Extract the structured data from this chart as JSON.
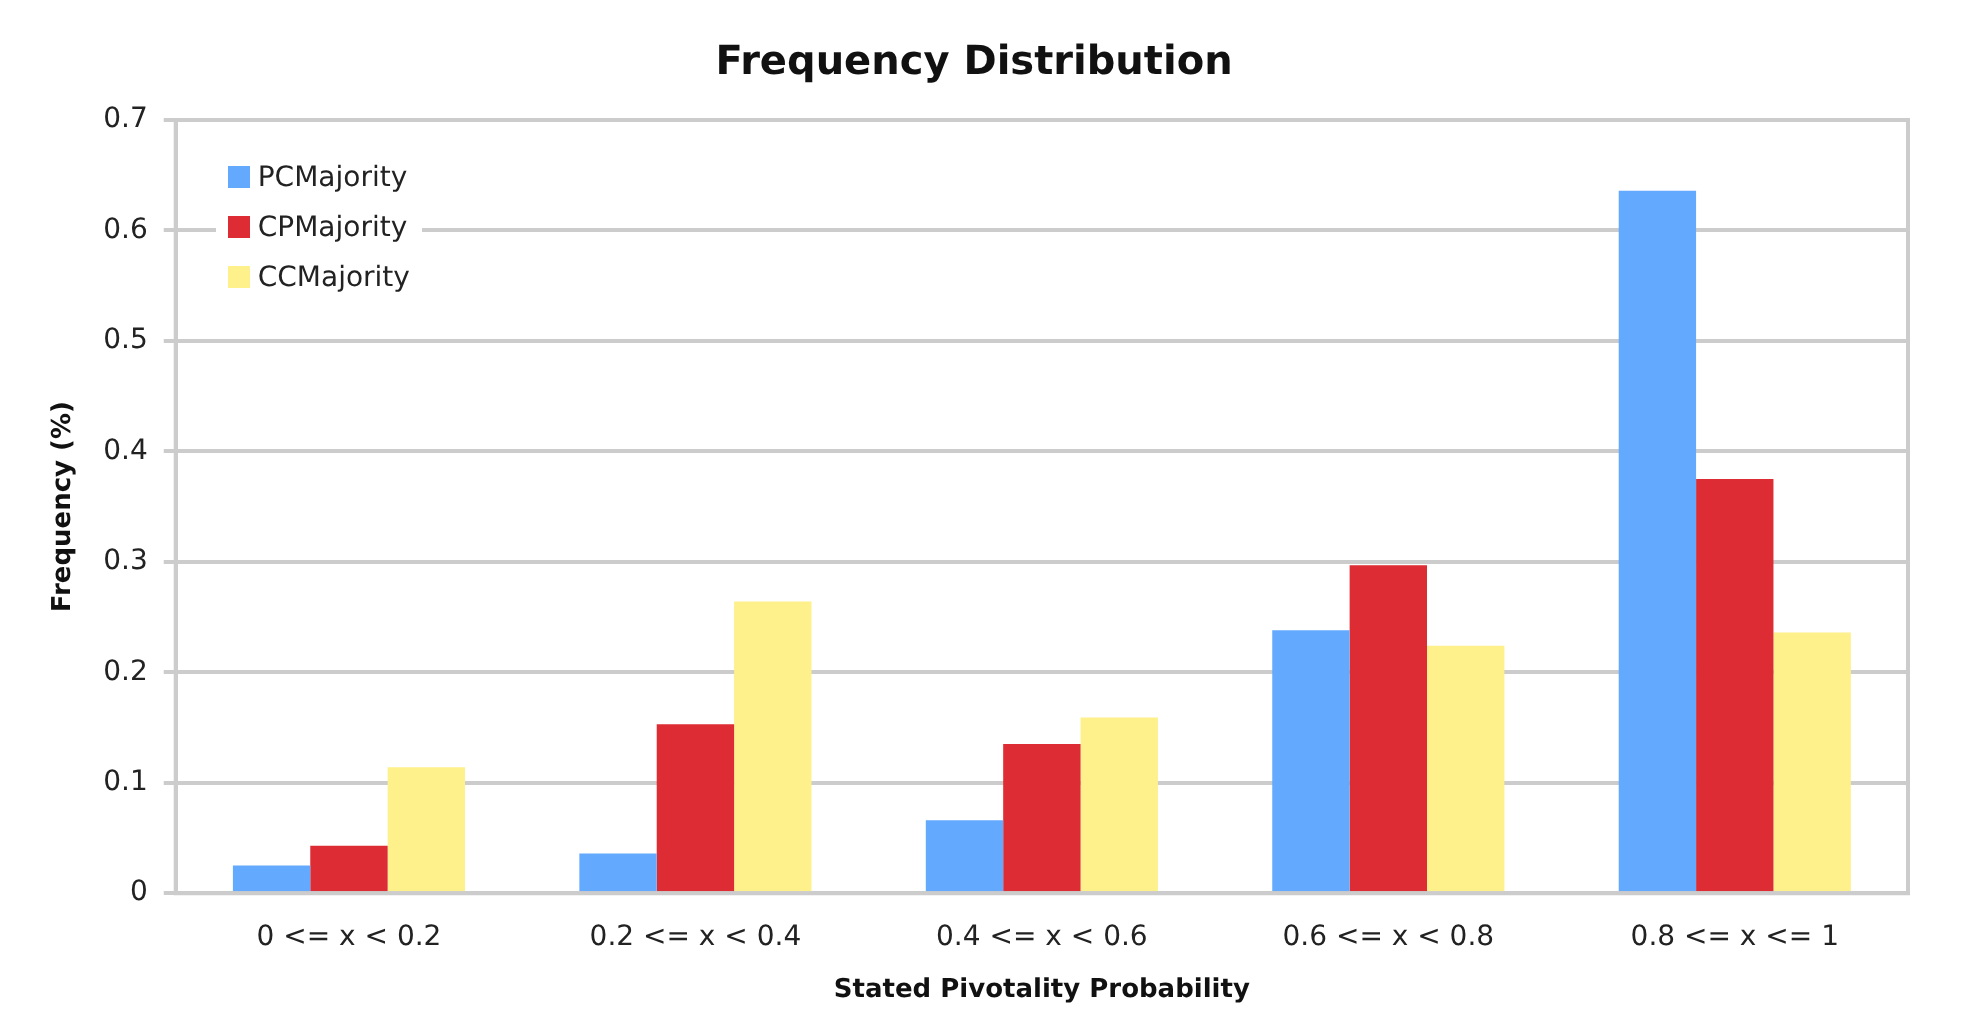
{
  "chart_data": {
    "type": "bar",
    "title": "Frequency Distribution",
    "xlabel": "Stated Pivotality Probability",
    "ylabel": "Frequency (%)",
    "categories": [
      "0 <= x < 0.2",
      "0.2 <= x < 0.4",
      "0.4 <= x < 0.6",
      "0.6 <= x < 0.8",
      "0.8 <= x <= 1"
    ],
    "series": [
      {
        "name": "PCMajority",
        "color": "#63a9fd",
        "values": [
          0.025,
          0.036,
          0.066,
          0.238,
          0.636
        ]
      },
      {
        "name": "CPMajority",
        "color": "#dd2c33",
        "values": [
          0.043,
          0.153,
          0.135,
          0.297,
          0.375
        ]
      },
      {
        "name": "CCMajority",
        "color": "#fef08a",
        "values": [
          0.114,
          0.264,
          0.159,
          0.224,
          0.236
        ]
      }
    ],
    "ylim": [
      0,
      0.7
    ],
    "yticks": [
      0,
      0.1,
      0.2,
      0.3,
      0.4,
      0.5,
      0.6,
      0.7
    ],
    "grid": "y",
    "legend": "top left"
  }
}
